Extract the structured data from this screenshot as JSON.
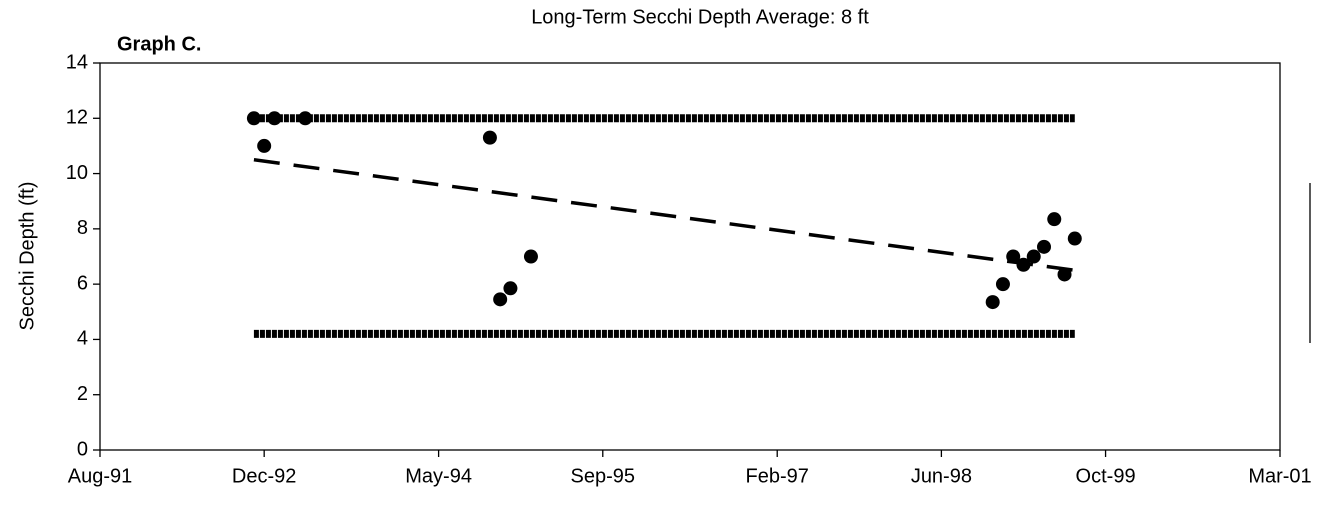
{
  "chart_data": {
    "type": "scatter",
    "title": "Long-Term Secchi Depth Average:  8 ft",
    "label": "Graph C.",
    "ylabel": "Secchi Depth (ft)",
    "xlim": [
      "1991-08",
      "2001-03"
    ],
    "xticks": [
      {
        "value": "1991-08",
        "label": "Aug-91"
      },
      {
        "value": "1992-12",
        "label": "Dec-92"
      },
      {
        "value": "1994-05",
        "label": "May-94"
      },
      {
        "value": "1995-09",
        "label": "Sep-95"
      },
      {
        "value": "1997-02",
        "label": "Feb-97"
      },
      {
        "value": "1998-06",
        "label": "Jun-98"
      },
      {
        "value": "1999-10",
        "label": "Oct-99"
      },
      {
        "value": "2001-03",
        "label": "Mar-01"
      }
    ],
    "ylim": [
      0,
      14
    ],
    "yticks": [
      0,
      2,
      4,
      6,
      8,
      10,
      12,
      14
    ],
    "series": [
      {
        "style": "markers",
        "color": "#000000",
        "x": [
          "1992-11",
          "1992-12",
          "1993-01",
          "1993-04",
          "1994-10",
          "1994-11",
          "1994-12",
          "1995-02",
          "1998-11",
          "1998-12",
          "1999-01",
          "1999-02",
          "1999-03",
          "1999-04",
          "1999-05",
          "1999-06",
          "1999-07"
        ],
        "values": [
          12,
          11,
          12,
          12,
          11.3,
          5.45,
          5.85,
          7,
          5.35,
          6,
          7,
          6.7,
          7,
          7.35,
          8.35,
          6.35,
          7.65
        ]
      },
      {
        "style": "band",
        "color": "#000000",
        "x": [
          "1992-11",
          "1999-07"
        ],
        "values": [
          12,
          12
        ]
      },
      {
        "style": "band",
        "color": "#000000",
        "x": [
          "1992-11",
          "1999-07"
        ],
        "values": [
          4.2,
          4.2
        ]
      },
      {
        "style": "dashed",
        "color": "#000000",
        "x": [
          "1992-11",
          "1999-07"
        ],
        "values": [
          10.5,
          6.5
        ]
      }
    ]
  }
}
